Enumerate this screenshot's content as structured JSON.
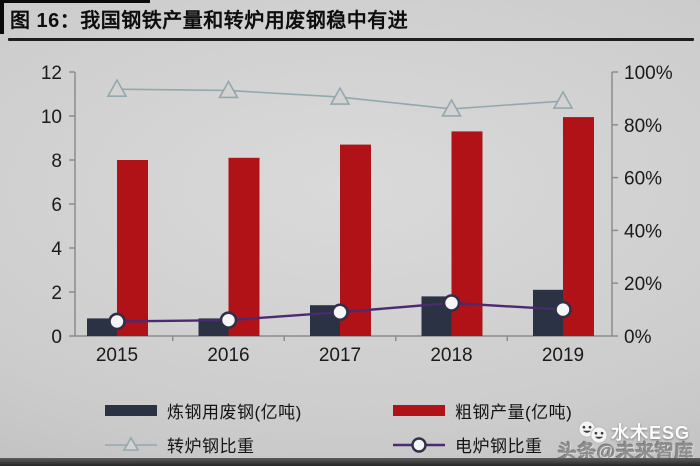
{
  "figure": {
    "title": "图 16：我国钢铁产量和转炉用废钢稳中有进"
  },
  "chart_data": {
    "type": "combo-bar-line",
    "title": "我国钢铁产量和转炉用废钢稳中有进",
    "categories": [
      "2015",
      "2016",
      "2017",
      "2018",
      "2019"
    ],
    "series": [
      {
        "name": "炼钢用废钢(亿吨)",
        "type": "bar",
        "axis": "left",
        "color": "#2b3243",
        "values": [
          0.8,
          0.8,
          1.4,
          1.8,
          2.1
        ]
      },
      {
        "name": "粗钢产量(亿吨)",
        "type": "bar",
        "axis": "left",
        "color": "#b11217",
        "values": [
          8.0,
          8.1,
          8.7,
          9.3,
          9.95
        ]
      },
      {
        "name": "转炉钢比重",
        "type": "line",
        "axis": "right",
        "marker": "triangle",
        "color": "#93a8ad",
        "values": [
          93.5,
          93,
          90.5,
          86,
          89
        ]
      },
      {
        "name": "电炉钢比重",
        "type": "line",
        "axis": "right",
        "marker": "circle",
        "color": "#4b2a70",
        "values": [
          5.5,
          6,
          9,
          12.5,
          10
        ]
      }
    ],
    "left_axis": {
      "min": 0,
      "max": 12,
      "ticks": [
        0,
        2,
        4,
        6,
        8,
        10,
        12
      ]
    },
    "right_axis": {
      "min": 0,
      "max": 100,
      "tick_values": [
        0,
        20,
        40,
        60,
        80,
        100
      ],
      "tick_labels": [
        "0%",
        "20%",
        "40%",
        "60%",
        "80%",
        "100%"
      ]
    },
    "grid": false,
    "legend_position": "bottom"
  },
  "legend": {
    "items": [
      {
        "label": "炼钢用废钢(亿吨)",
        "marker": "bar",
        "color": "#2b3243"
      },
      {
        "label": "粗钢产量(亿吨)",
        "marker": "bar",
        "color": "#b11217"
      },
      {
        "label": "转炉钢比重",
        "marker": "line-triangle",
        "color": "#93a8ad"
      },
      {
        "label": "电炉钢比重",
        "marker": "line-circle",
        "color": "#4b2a70"
      }
    ]
  },
  "watermarks": {
    "toutiao": "头条@未来智库",
    "brand": "水木ESG"
  },
  "colors": {
    "axis": "#8c8c8c",
    "plot_background": "#d2d2d2",
    "marker_fill": "#f6f6f6",
    "circle_stroke": "#30304a"
  }
}
